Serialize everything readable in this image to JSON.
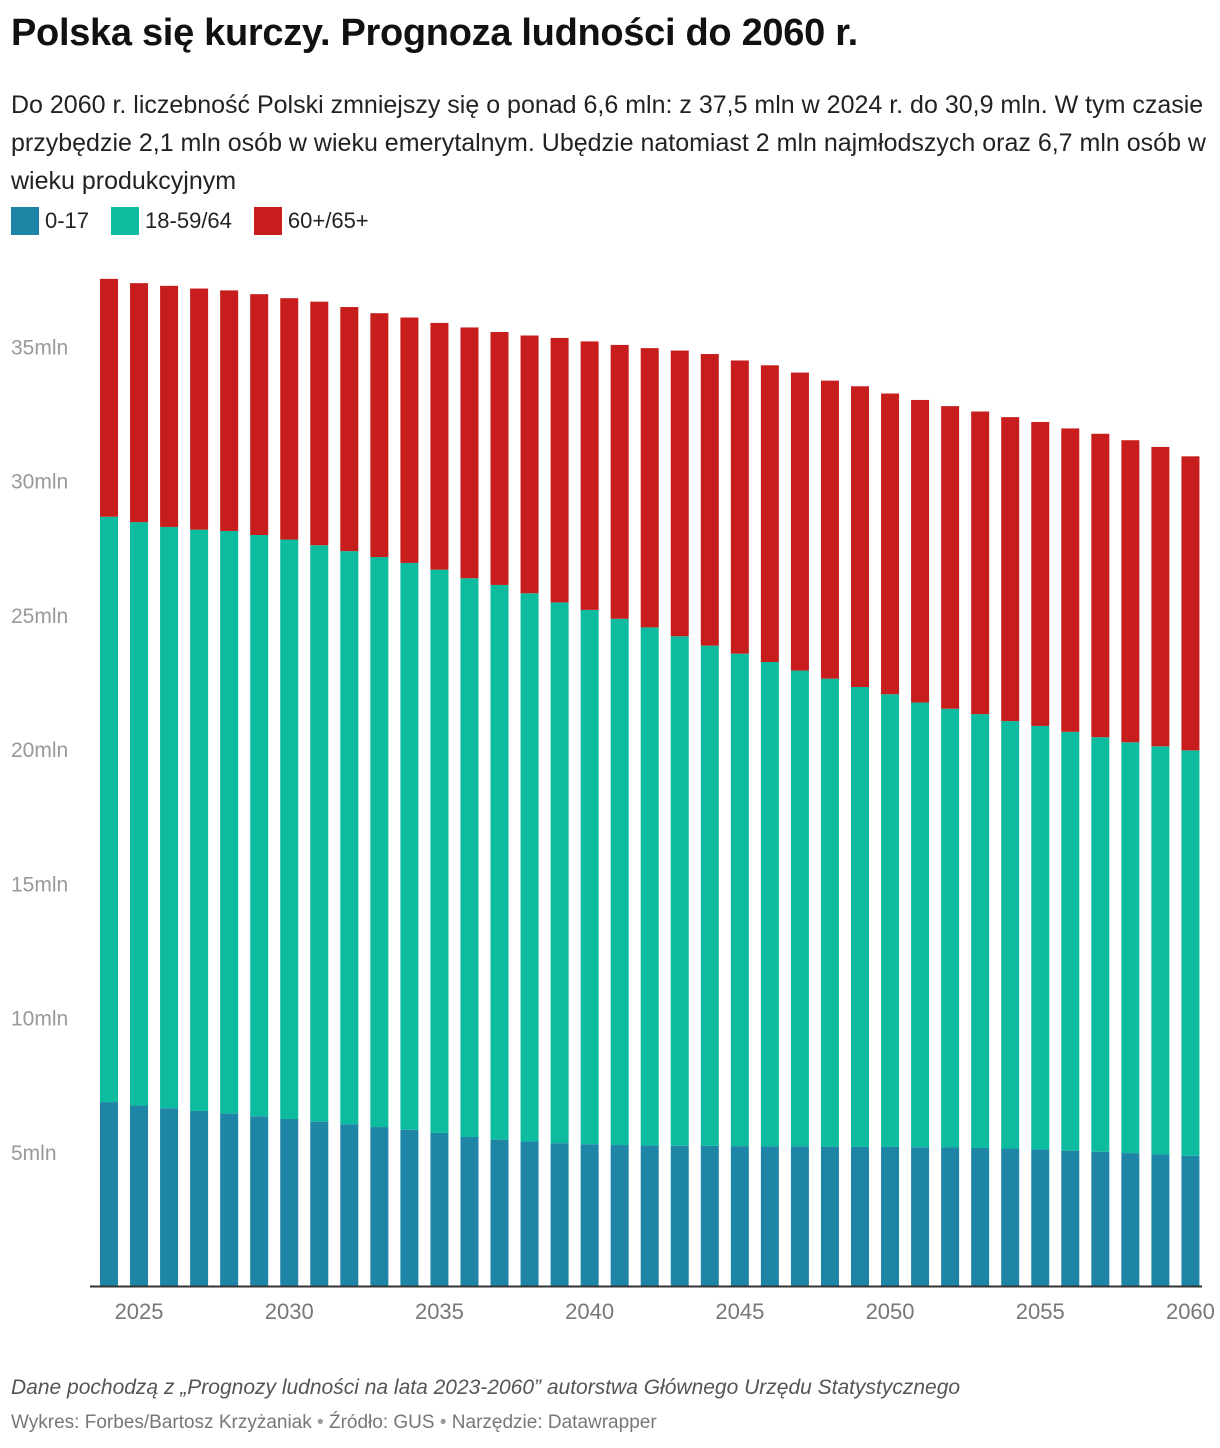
{
  "header": {
    "title": "Polska się kurczy. Prognoza ludności do 2060 r.",
    "subtitle": "Do 2060 r. liczebność Polski zmniejszy się o ponad 6,6 mln: z 37,5 mln w 2024 r. do 30,9 mln. W tym czasie przybędzie 2,1 mln osób w wieku emerytalnym. Ubędzie natomiast 2 mln najmłodszych oraz 6,7 mln osób w wieku produkcyjnym"
  },
  "legend": [
    {
      "label": "0-17",
      "color": "#1f85a6"
    },
    {
      "label": "18-59/64",
      "color": "#0dbb9f"
    },
    {
      "label": "60+/65+",
      "color": "#c71e1d"
    }
  ],
  "chart_data": {
    "type": "bar",
    "stacked": true,
    "x": [
      2024,
      2025,
      2026,
      2027,
      2028,
      2029,
      2030,
      2031,
      2032,
      2033,
      2034,
      2035,
      2036,
      2037,
      2038,
      2039,
      2040,
      2041,
      2042,
      2043,
      2044,
      2045,
      2046,
      2047,
      2048,
      2049,
      2050,
      2051,
      2052,
      2053,
      2054,
      2055,
      2056,
      2057,
      2058,
      2059,
      2060
    ],
    "x_tick_labels": [
      "2025",
      "2030",
      "2035",
      "2040",
      "2045",
      "2050",
      "2055",
      "2060"
    ],
    "y_tick_labels": [
      "5mln",
      "10mln",
      "15mln",
      "20mln",
      "25mln",
      "30mln",
      "35mln"
    ],
    "y_ticks": [
      5,
      10,
      15,
      20,
      25,
      30,
      35
    ],
    "ylim": [
      0,
      38.2
    ],
    "series": [
      {
        "name": "0-17",
        "color": "#1f85a6",
        "values": [
          6.85,
          6.72,
          6.62,
          6.52,
          6.42,
          6.32,
          6.22,
          6.12,
          6.02,
          5.92,
          5.82,
          5.7,
          5.55,
          5.45,
          5.38,
          5.32,
          5.28,
          5.25,
          5.23,
          5.22,
          5.22,
          5.21,
          5.2,
          5.2,
          5.19,
          5.19,
          5.18,
          5.17,
          5.16,
          5.14,
          5.12,
          5.08,
          5.04,
          5.0,
          4.95,
          4.9,
          4.85
        ]
      },
      {
        "name": "18-59/64",
        "color": "#0dbb9f",
        "values": [
          21.8,
          21.73,
          21.65,
          21.65,
          21.7,
          21.65,
          21.58,
          21.47,
          21.35,
          21.23,
          21.11,
          20.98,
          20.81,
          20.66,
          20.42,
          20.14,
          19.9,
          19.6,
          19.3,
          18.98,
          18.63,
          18.34,
          18.04,
          17.72,
          17.43,
          17.12,
          16.86,
          16.56,
          16.34,
          16.16,
          15.92,
          15.78,
          15.6,
          15.44,
          15.3,
          15.2,
          15.1
        ]
      },
      {
        "name": "60+/65+",
        "color": "#c71e1d",
        "values": [
          8.86,
          8.9,
          8.98,
          8.98,
          8.96,
          8.97,
          8.99,
          9.07,
          9.09,
          9.08,
          9.14,
          9.19,
          9.34,
          9.42,
          9.6,
          9.85,
          10.0,
          10.2,
          10.4,
          10.64,
          10.86,
          10.92,
          11.05,
          11.1,
          11.1,
          11.2,
          11.2,
          11.27,
          11.27,
          11.27,
          11.32,
          11.32,
          11.3,
          11.3,
          11.25,
          11.15,
          10.95
        ]
      }
    ]
  },
  "footer": {
    "note": "Dane pochodzą z „Prognozy ludności na lata 2023-2060” autorstwa Głównego Urzędu Statystycznego",
    "credit_chart": "Wykres: Forbes/Bartosz Krzyżaniak",
    "credit_source": "Źródło: GUS",
    "credit_tool": "Narzędzie: Datawrapper",
    "separator": "•"
  }
}
